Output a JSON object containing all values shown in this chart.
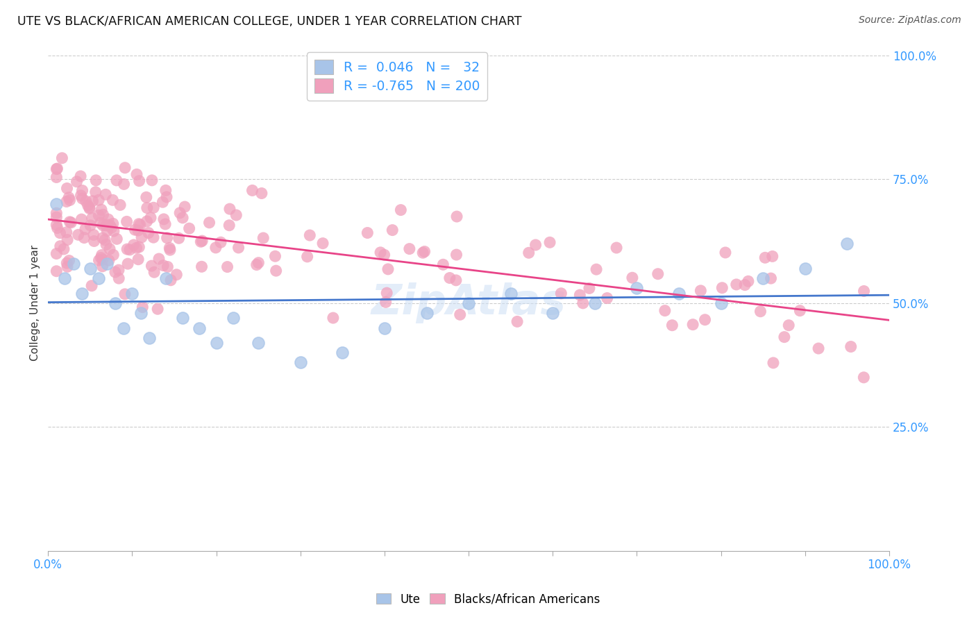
{
  "title": "UTE VS BLACK/AFRICAN AMERICAN COLLEGE, UNDER 1 YEAR CORRELATION CHART",
  "source": "Source: ZipAtlas.com",
  "ylabel": "College, Under 1 year",
  "ute_R": 0.046,
  "ute_N": 32,
  "black_R": -0.765,
  "black_N": 200,
  "ute_color": "#a8c4e8",
  "ute_line_color": "#4477cc",
  "black_color": "#f0a0bc",
  "black_line_color": "#e84488",
  "legend_box_ute": "#a8c4e8",
  "legend_box_black": "#f0a0bc",
  "label_color": "#3399ff",
  "title_color": "#111111",
  "background_color": "#ffffff",
  "grid_color": "#cccccc",
  "watermark_color": "#ccdff5",
  "source_color": "#555555",
  "seed": 1234
}
